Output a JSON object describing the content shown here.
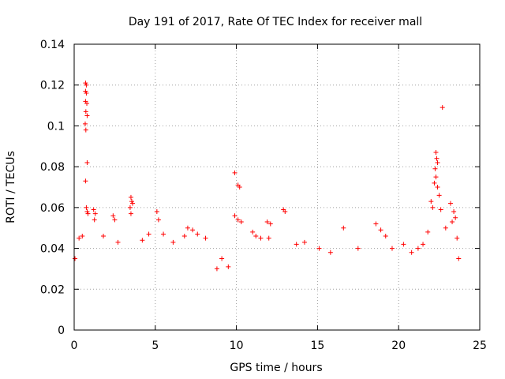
{
  "chart_data": {
    "type": "scatter",
    "title": "Day 191 of 2017, Rate Of TEC Index for receiver mall",
    "xlabel": "GPS time / hours",
    "ylabel": "ROTI / TECUs",
    "xlim": [
      0,
      25
    ],
    "ylim": [
      0,
      0.14
    ],
    "xticks": [
      0,
      5,
      10,
      15,
      20,
      25
    ],
    "yticks": [
      0,
      0.02,
      0.04,
      0.06,
      0.08,
      0.1,
      0.12,
      0.14
    ],
    "xtick_labels": [
      "0",
      "5",
      "10",
      "15",
      "20",
      "25"
    ],
    "ytick_labels": [
      "0",
      "0.02",
      "0.04",
      "0.06",
      "0.08",
      "0.1",
      "0.12",
      "0.14"
    ],
    "grid": true,
    "marker": "+",
    "color": "#ff0000",
    "series": [
      {
        "name": "ROTI",
        "points": [
          [
            0.7,
            0.121
          ],
          [
            0.75,
            0.12
          ],
          [
            0.7,
            0.117
          ],
          [
            0.75,
            0.116
          ],
          [
            0.7,
            0.112
          ],
          [
            0.78,
            0.111
          ],
          [
            0.72,
            0.107
          ],
          [
            0.8,
            0.105
          ],
          [
            0.68,
            0.101
          ],
          [
            0.72,
            0.098
          ],
          [
            0.8,
            0.082
          ],
          [
            0.7,
            0.073
          ],
          [
            0.75,
            0.06
          ],
          [
            0.8,
            0.058
          ],
          [
            0.85,
            0.057
          ],
          [
            1.2,
            0.059
          ],
          [
            1.3,
            0.057
          ],
          [
            1.25,
            0.054
          ],
          [
            2.4,
            0.056
          ],
          [
            2.5,
            0.054
          ],
          [
            3.5,
            0.065
          ],
          [
            3.55,
            0.063
          ],
          [
            3.6,
            0.062
          ],
          [
            3.45,
            0.06
          ],
          [
            3.5,
            0.057
          ],
          [
            5.1,
            0.058
          ],
          [
            5.2,
            0.054
          ],
          [
            6.1,
            0.043
          ],
          [
            7.0,
            0.05
          ],
          [
            7.3,
            0.049
          ],
          [
            8.1,
            0.045
          ],
          [
            9.1,
            0.035
          ],
          [
            9.9,
            0.077
          ],
          [
            10.1,
            0.071
          ],
          [
            10.2,
            0.07
          ],
          [
            9.9,
            0.056
          ],
          [
            10.1,
            0.054
          ],
          [
            10.3,
            0.053
          ],
          [
            11.0,
            0.048
          ],
          [
            11.2,
            0.046
          ],
          [
            11.9,
            0.053
          ],
          [
            12.1,
            0.052
          ],
          [
            12.9,
            0.059
          ],
          [
            13.0,
            0.058
          ],
          [
            12.0,
            0.045
          ],
          [
            14.2,
            0.043
          ],
          [
            15.1,
            0.04
          ],
          [
            16.6,
            0.05
          ],
          [
            18.6,
            0.052
          ],
          [
            18.9,
            0.049
          ],
          [
            19.2,
            0.046
          ],
          [
            20.3,
            0.042
          ],
          [
            21.5,
            0.042
          ],
          [
            22.3,
            0.087
          ],
          [
            22.35,
            0.084
          ],
          [
            22.4,
            0.082
          ],
          [
            22.25,
            0.079
          ],
          [
            22.3,
            0.075
          ],
          [
            22.2,
            0.072
          ],
          [
            22.4,
            0.07
          ],
          [
            22.5,
            0.066
          ],
          [
            22.0,
            0.063
          ],
          [
            22.1,
            0.06
          ],
          [
            22.6,
            0.059
          ],
          [
            22.7,
            0.109
          ],
          [
            23.2,
            0.062
          ],
          [
            23.4,
            0.058
          ],
          [
            23.5,
            0.055
          ],
          [
            23.3,
            0.053
          ],
          [
            21.8,
            0.048
          ],
          [
            22.9,
            0.05
          ],
          [
            0.05,
            0.035
          ],
          [
            0.3,
            0.045
          ],
          [
            0.5,
            0.046
          ],
          [
            1.8,
            0.046
          ],
          [
            2.7,
            0.043
          ],
          [
            4.2,
            0.044
          ],
          [
            4.6,
            0.047
          ],
          [
            5.5,
            0.047
          ],
          [
            6.8,
            0.046
          ],
          [
            7.6,
            0.047
          ],
          [
            8.8,
            0.03
          ],
          [
            9.5,
            0.031
          ],
          [
            11.5,
            0.045
          ],
          [
            13.7,
            0.042
          ],
          [
            15.8,
            0.038
          ],
          [
            17.5,
            0.04
          ],
          [
            19.6,
            0.04
          ],
          [
            20.8,
            0.038
          ],
          [
            21.2,
            0.04
          ],
          [
            23.6,
            0.045
          ],
          [
            23.7,
            0.035
          ]
        ]
      }
    ]
  }
}
